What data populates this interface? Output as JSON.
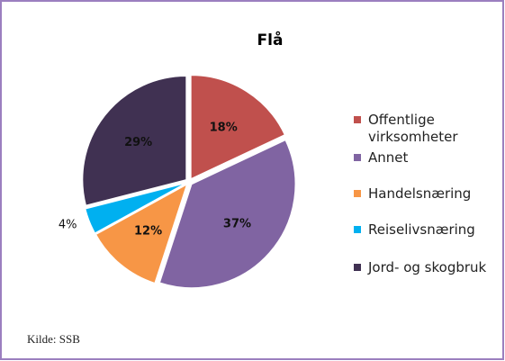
{
  "chart_data": {
    "type": "pie",
    "title": "Flå",
    "categories": [
      "Offentlige virksomheter",
      "Annet",
      "Handelsnæring",
      "Reiselivsnæring",
      "Jord- og skogbruk"
    ],
    "values": [
      18,
      37,
      12,
      4,
      29
    ],
    "value_labels": [
      "18%",
      "37%",
      "12%",
      "4%",
      "29%"
    ],
    "colors": [
      "#c0504d",
      "#8064a2",
      "#f79646",
      "#00b0f0",
      "#403152"
    ],
    "legend": "right",
    "source": "Kilde: SSB"
  }
}
